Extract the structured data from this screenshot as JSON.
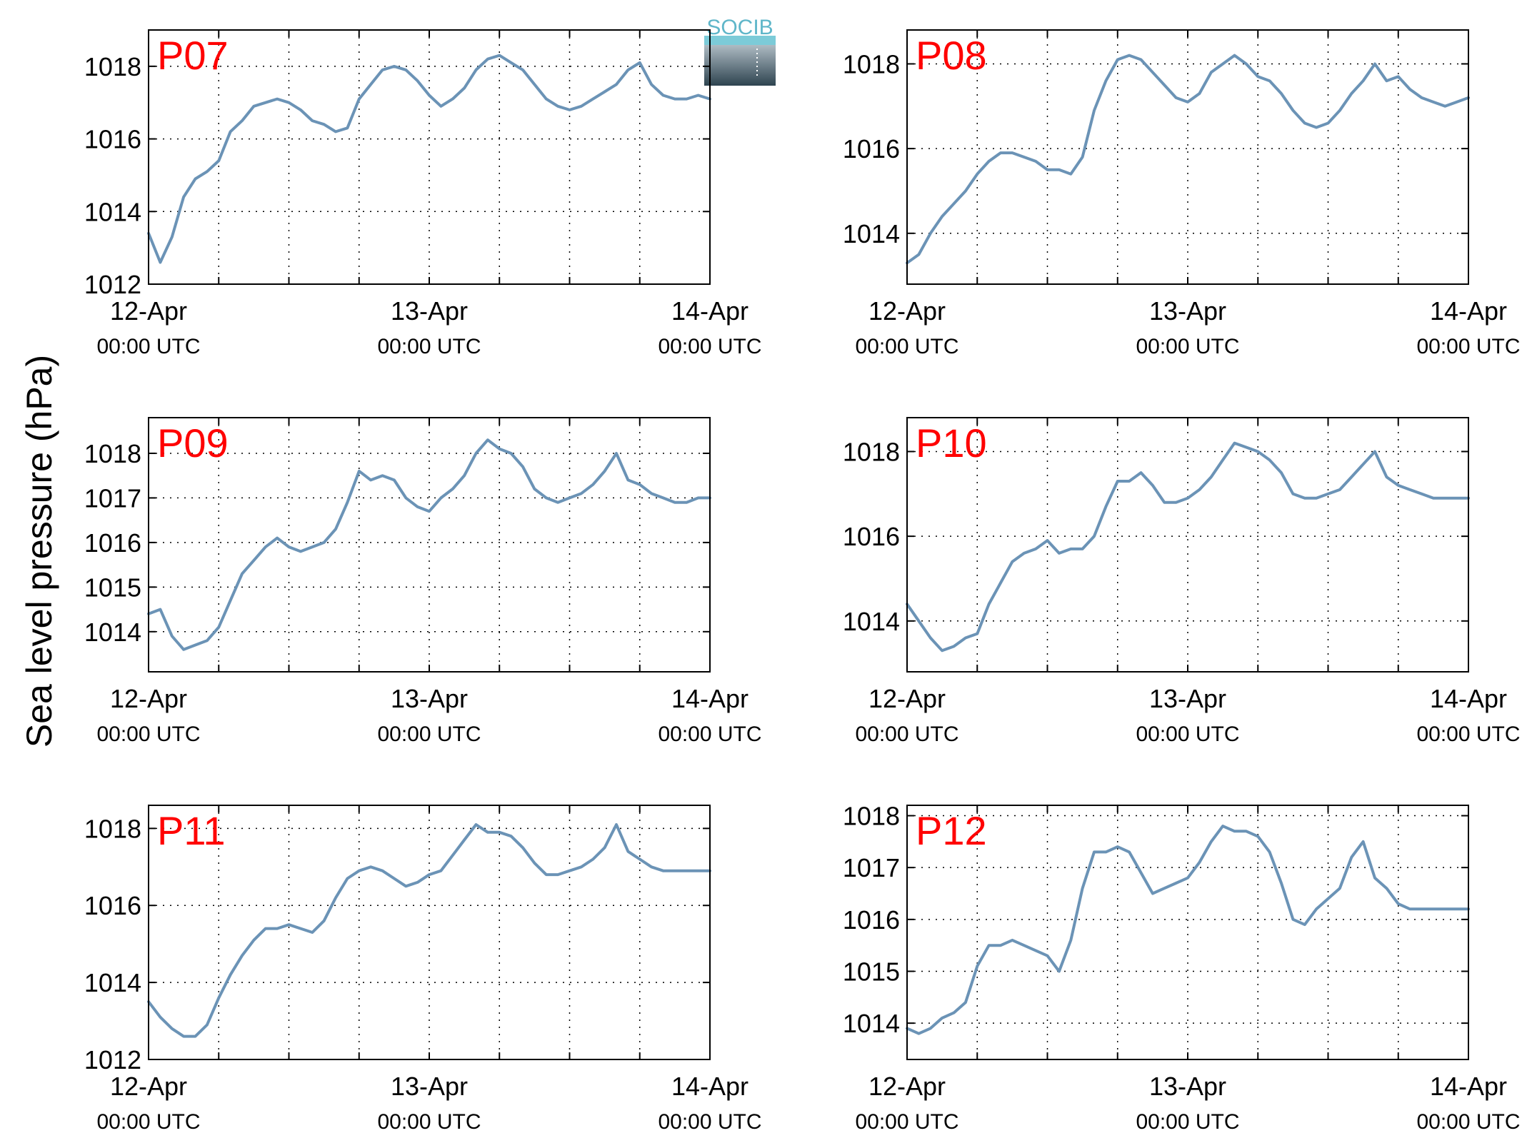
{
  "figure": {
    "ylabel": "Sea level pressure (hPa)",
    "logo_text": "SOCIB",
    "x_ticks": [
      {
        "day": "12-Apr",
        "time": "00:00 UTC"
      },
      {
        "day": "13-Apr",
        "time": "00:00 UTC"
      },
      {
        "day": "14-Apr",
        "time": "00:00 UTC"
      }
    ]
  },
  "colors": {
    "line": "#6b93b6",
    "label": "#ff0000",
    "axis": "#000000",
    "grid": "#000000"
  },
  "chart_data": [
    {
      "type": "line",
      "label": "P07",
      "xlim": [
        "12-Apr 00:00",
        "14-Apr 00:00"
      ],
      "ylim": [
        1012,
        1019
      ],
      "yticks": [
        1012,
        1014,
        1016,
        1018
      ],
      "grid": true,
      "x_hours": [
        0,
        1,
        2,
        3,
        4,
        5,
        6,
        7,
        8,
        9,
        10,
        11,
        12,
        13,
        14,
        15,
        16,
        17,
        18,
        19,
        20,
        21,
        22,
        23,
        24,
        25,
        26,
        27,
        28,
        29,
        30,
        31,
        32,
        33,
        34,
        35,
        36,
        37,
        38,
        39,
        40,
        41,
        42,
        43,
        44,
        45,
        46,
        47,
        48
      ],
      "y": [
        1013.4,
        1012.6,
        1013.3,
        1014.4,
        1014.9,
        1015.1,
        1015.4,
        1016.2,
        1016.5,
        1016.9,
        1017.0,
        1017.1,
        1017.0,
        1016.8,
        1016.5,
        1016.4,
        1016.2,
        1016.3,
        1017.1,
        1017.5,
        1017.9,
        1018.0,
        1017.9,
        1017.6,
        1017.2,
        1016.9,
        1017.1,
        1017.4,
        1017.9,
        1018.2,
        1018.3,
        1018.1,
        1017.9,
        1017.5,
        1017.1,
        1016.9,
        1016.8,
        1016.9,
        1017.1,
        1017.3,
        1017.5,
        1017.9,
        1018.1,
        1017.5,
        1017.2,
        1017.1,
        1017.1,
        1017.2,
        1017.1
      ]
    },
    {
      "type": "line",
      "label": "P08",
      "xlim": [
        "12-Apr 00:00",
        "14-Apr 00:00"
      ],
      "ylim": [
        1012.8,
        1018.8
      ],
      "yticks": [
        1014,
        1016,
        1018
      ],
      "grid": true,
      "x_hours": [
        0,
        1,
        2,
        3,
        4,
        5,
        6,
        7,
        8,
        9,
        10,
        11,
        12,
        13,
        14,
        15,
        16,
        17,
        18,
        19,
        20,
        21,
        22,
        23,
        24,
        25,
        26,
        27,
        28,
        29,
        30,
        31,
        32,
        33,
        34,
        35,
        36,
        37,
        38,
        39,
        40,
        41,
        42,
        43,
        44,
        45,
        46,
        47,
        48
      ],
      "y": [
        1013.3,
        1013.5,
        1014.0,
        1014.4,
        1014.7,
        1015.0,
        1015.4,
        1015.7,
        1015.9,
        1015.9,
        1015.8,
        1015.7,
        1015.5,
        1015.5,
        1015.4,
        1015.8,
        1016.9,
        1017.6,
        1018.1,
        1018.2,
        1018.1,
        1017.8,
        1017.5,
        1017.2,
        1017.1,
        1017.3,
        1017.8,
        1018.0,
        1018.2,
        1018.0,
        1017.7,
        1017.6,
        1017.3,
        1016.9,
        1016.6,
        1016.5,
        1016.6,
        1016.9,
        1017.3,
        1017.6,
        1018.0,
        1017.6,
        1017.7,
        1017.4,
        1017.2,
        1017.1,
        1017.0,
        1017.1,
        1017.2
      ]
    },
    {
      "type": "line",
      "label": "P09",
      "xlim": [
        "12-Apr 00:00",
        "14-Apr 00:00"
      ],
      "ylim": [
        1013.1,
        1018.8
      ],
      "yticks": [
        1014,
        1015,
        1016,
        1017,
        1018
      ],
      "grid": true,
      "x_hours": [
        0,
        1,
        2,
        3,
        4,
        5,
        6,
        7,
        8,
        9,
        10,
        11,
        12,
        13,
        14,
        15,
        16,
        17,
        18,
        19,
        20,
        21,
        22,
        23,
        24,
        25,
        26,
        27,
        28,
        29,
        30,
        31,
        32,
        33,
        34,
        35,
        36,
        37,
        38,
        39,
        40,
        41,
        42,
        43,
        44,
        45,
        46,
        47,
        48
      ],
      "y": [
        1014.4,
        1014.5,
        1013.9,
        1013.6,
        1013.7,
        1013.8,
        1014.1,
        1014.7,
        1015.3,
        1015.6,
        1015.9,
        1016.1,
        1015.9,
        1015.8,
        1015.9,
        1016.0,
        1016.3,
        1016.9,
        1017.6,
        1017.4,
        1017.5,
        1017.4,
        1017.0,
        1016.8,
        1016.7,
        1017.0,
        1017.2,
        1017.5,
        1018.0,
        1018.3,
        1018.1,
        1018.0,
        1017.7,
        1017.2,
        1017.0,
        1016.9,
        1017.0,
        1017.1,
        1017.3,
        1017.6,
        1018.0,
        1017.4,
        1017.3,
        1017.1,
        1017.0,
        1016.9,
        1016.9,
        1017.0,
        1017.0
      ]
    },
    {
      "type": "line",
      "label": "P10",
      "xlim": [
        "12-Apr 00:00",
        "14-Apr 00:00"
      ],
      "ylim": [
        1012.8,
        1018.8
      ],
      "yticks": [
        1014,
        1016,
        1018
      ],
      "grid": true,
      "x_hours": [
        0,
        1,
        2,
        3,
        4,
        5,
        6,
        7,
        8,
        9,
        10,
        11,
        12,
        13,
        14,
        15,
        16,
        17,
        18,
        19,
        20,
        21,
        22,
        23,
        24,
        25,
        26,
        27,
        28,
        29,
        30,
        31,
        32,
        33,
        34,
        35,
        36,
        37,
        38,
        39,
        40,
        41,
        42,
        43,
        44,
        45,
        46,
        47,
        48
      ],
      "y": [
        1014.4,
        1014.0,
        1013.6,
        1013.3,
        1013.4,
        1013.6,
        1013.7,
        1014.4,
        1014.9,
        1015.4,
        1015.6,
        1015.7,
        1015.9,
        1015.6,
        1015.7,
        1015.7,
        1016.0,
        1016.7,
        1017.3,
        1017.3,
        1017.5,
        1017.2,
        1016.8,
        1016.8,
        1016.9,
        1017.1,
        1017.4,
        1017.8,
        1018.2,
        1018.1,
        1018.0,
        1017.8,
        1017.5,
        1017.0,
        1016.9,
        1016.9,
        1017.0,
        1017.1,
        1017.4,
        1017.7,
        1018.0,
        1017.4,
        1017.2,
        1017.1,
        1017.0,
        1016.9,
        1016.9,
        1016.9,
        1016.9
      ]
    },
    {
      "type": "line",
      "label": "P11",
      "xlim": [
        "12-Apr 00:00",
        "14-Apr 00:00"
      ],
      "ylim": [
        1012,
        1018.6
      ],
      "yticks": [
        1012,
        1014,
        1016,
        1018
      ],
      "grid": true,
      "x_hours": [
        0,
        1,
        2,
        3,
        4,
        5,
        6,
        7,
        8,
        9,
        10,
        11,
        12,
        13,
        14,
        15,
        16,
        17,
        18,
        19,
        20,
        21,
        22,
        23,
        24,
        25,
        26,
        27,
        28,
        29,
        30,
        31,
        32,
        33,
        34,
        35,
        36,
        37,
        38,
        39,
        40,
        41,
        42,
        43,
        44,
        45,
        46,
        47,
        48
      ],
      "y": [
        1013.5,
        1013.1,
        1012.8,
        1012.6,
        1012.6,
        1012.9,
        1013.6,
        1014.2,
        1014.7,
        1015.1,
        1015.4,
        1015.4,
        1015.5,
        1015.4,
        1015.3,
        1015.6,
        1016.2,
        1016.7,
        1016.9,
        1017.0,
        1016.9,
        1016.7,
        1016.5,
        1016.6,
        1016.8,
        1016.9,
        1017.3,
        1017.7,
        1018.1,
        1017.9,
        1017.9,
        1017.8,
        1017.5,
        1017.1,
        1016.8,
        1016.8,
        1016.9,
        1017.0,
        1017.2,
        1017.5,
        1018.1,
        1017.4,
        1017.2,
        1017.0,
        1016.9,
        1016.9,
        1016.9,
        1016.9,
        1016.9
      ]
    },
    {
      "type": "line",
      "label": "P12",
      "xlim": [
        "12-Apr 00:00",
        "14-Apr 00:00"
      ],
      "ylim": [
        1013.3,
        1018.2
      ],
      "yticks": [
        1014,
        1015,
        1016,
        1017,
        1018
      ],
      "grid": true,
      "x_hours": [
        0,
        1,
        2,
        3,
        4,
        5,
        6,
        7,
        8,
        9,
        10,
        11,
        12,
        13,
        14,
        15,
        16,
        17,
        18,
        19,
        20,
        21,
        22,
        23,
        24,
        25,
        26,
        27,
        28,
        29,
        30,
        31,
        32,
        33,
        34,
        35,
        36,
        37,
        38,
        39,
        40,
        41,
        42,
        43,
        44,
        45,
        46,
        47,
        48
      ],
      "y": [
        1013.9,
        1013.8,
        1013.9,
        1014.1,
        1014.2,
        1014.4,
        1015.1,
        1015.5,
        1015.5,
        1015.6,
        1015.5,
        1015.4,
        1015.3,
        1015.0,
        1015.6,
        1016.6,
        1017.3,
        1017.3,
        1017.4,
        1017.3,
        1016.9,
        1016.5,
        1016.6,
        1016.7,
        1016.8,
        1017.1,
        1017.5,
        1017.8,
        1017.7,
        1017.7,
        1017.6,
        1017.3,
        1016.7,
        1016.0,
        1015.9,
        1016.2,
        1016.4,
        1016.6,
        1017.2,
        1017.5,
        1016.8,
        1016.6,
        1016.3,
        1016.2,
        1016.2,
        1016.2,
        1016.2,
        1016.2,
        1016.2
      ]
    }
  ]
}
